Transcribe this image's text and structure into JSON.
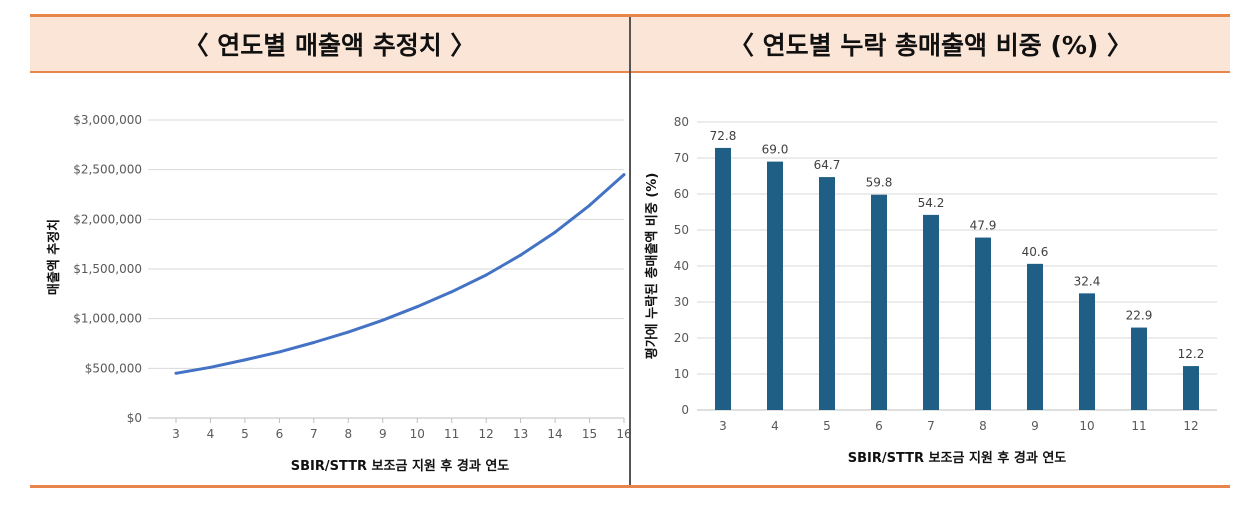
{
  "headers": {
    "left": "〈 연도별 매출액 추정치 〉",
    "right": "〈 연도별 누락 총매출액 비중 (%) 〉"
  },
  "colors": {
    "accent": "#e8854a",
    "header_bg": "#fbe5d6",
    "line": "#4472c4",
    "bar": "#1f5f86"
  },
  "chart_data": [
    {
      "type": "line",
      "ylabel": "매출액 추정치",
      "xlabel": "SBIR/STTR 보조금 지원 후 경과 연도",
      "x": [
        3,
        4,
        5,
        6,
        7,
        8,
        9,
        10,
        11,
        12,
        13,
        14,
        15,
        16
      ],
      "series": [
        {
          "values": [
            450000,
            510000,
            585000,
            665000,
            760000,
            865000,
            985000,
            1120000,
            1270000,
            1440000,
            1640000,
            1870000,
            2140000,
            2450000
          ]
        }
      ],
      "yticks": [
        "$0",
        "$500,000",
        "$1,000,000",
        "$1,500,000",
        "$2,000,000",
        "$2,500,000",
        "$3,000,000"
      ],
      "ylim": [
        0,
        3000000
      ],
      "grid": true,
      "legend": "none"
    },
    {
      "type": "bar",
      "ylabel": "평가에 누락된 총매출액 비중 (%)",
      "xlabel": "SBIR/STTR 보조금 지원 후 경과 연도",
      "categories": [
        "3",
        "4",
        "5",
        "6",
        "7",
        "8",
        "9",
        "10",
        "11",
        "12"
      ],
      "values": [
        72.8,
        69.0,
        64.7,
        59.8,
        54.2,
        47.9,
        40.6,
        32.4,
        22.9,
        12.2
      ],
      "value_labels": [
        "72.8",
        "69.0",
        "64.7",
        "59.8",
        "54.2",
        "47.9",
        "40.6",
        "32.4",
        "22.9",
        "12.2"
      ],
      "yticks": [
        "0",
        "10",
        "20",
        "30",
        "40",
        "50",
        "60",
        "70",
        "80"
      ],
      "ylim": [
        0,
        80
      ],
      "grid": true,
      "legend": "none"
    }
  ]
}
